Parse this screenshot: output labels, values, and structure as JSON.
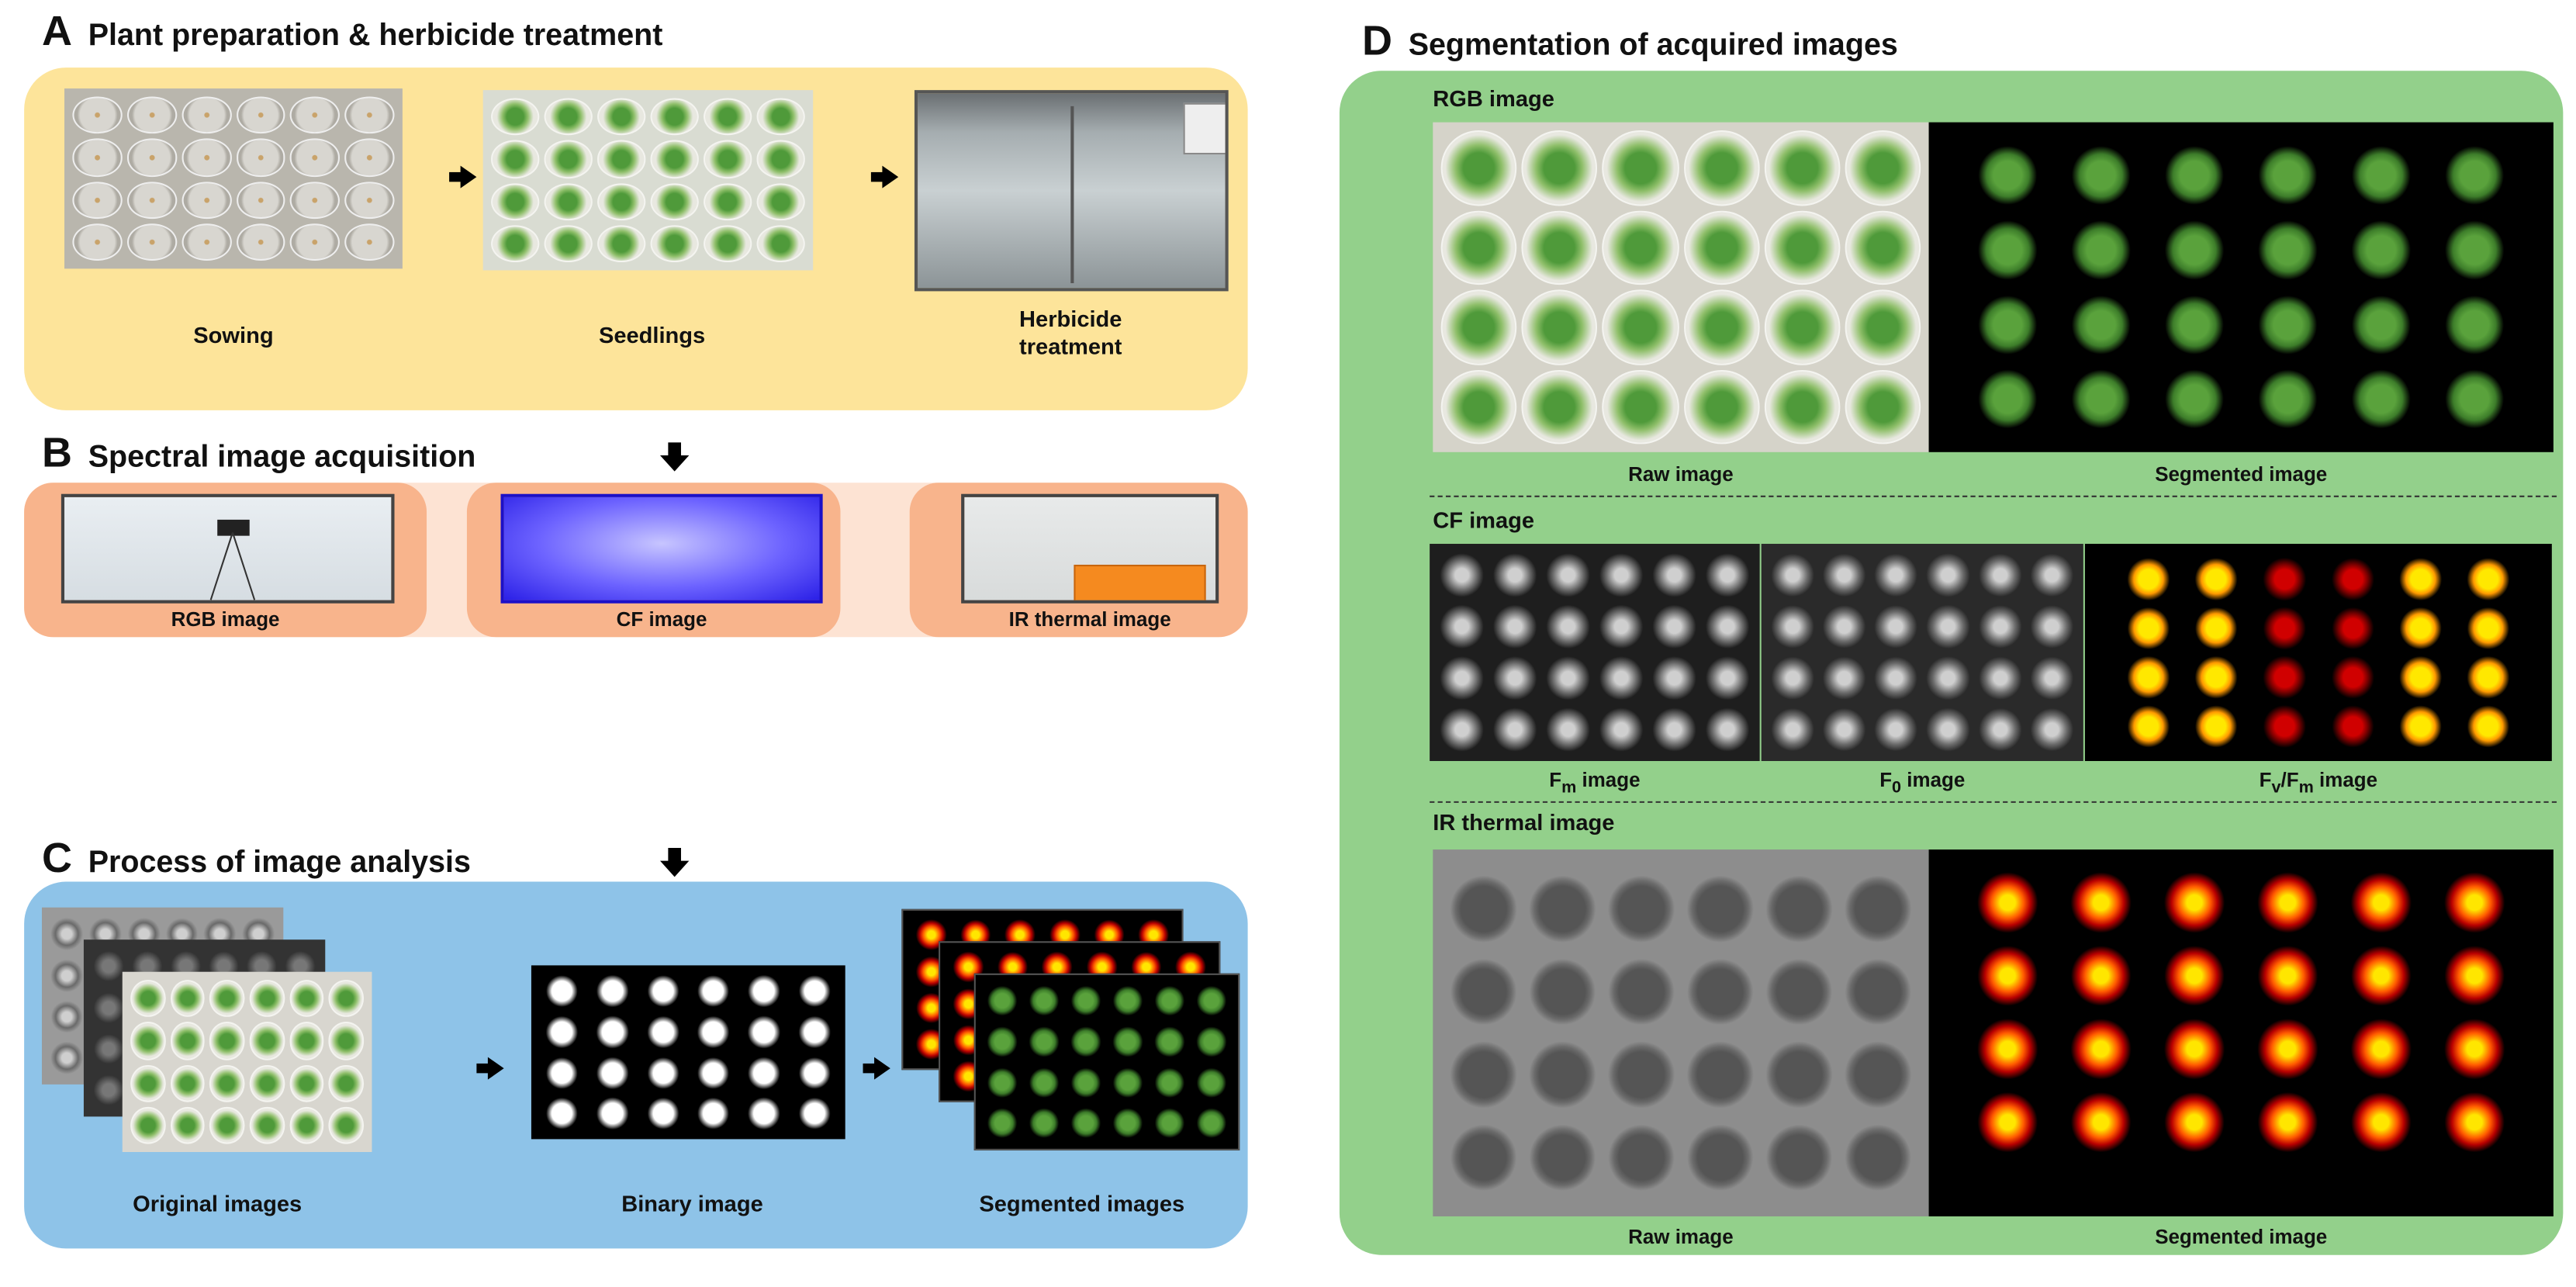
{
  "panel_a": {
    "letter": "A",
    "title": "Plant preparation & herbicide treatment",
    "steps": [
      {
        "label": "Sowing"
      },
      {
        "label": "Seedlings"
      },
      {
        "label_line1": "Herbicide",
        "label_line2": "treatment"
      }
    ],
    "color": "#fde49a"
  },
  "panel_b": {
    "letter": "B",
    "title": "Spectral image acquisition",
    "items": [
      {
        "label": "RGB image"
      },
      {
        "label": "CF image"
      },
      {
        "label": "IR thermal image"
      }
    ],
    "outer_color": "#fde3d3",
    "inner_color": "#f8b48c"
  },
  "panel_c": {
    "letter": "C",
    "title": "Process of image analysis",
    "steps": [
      {
        "label": "Original images"
      },
      {
        "label": "Binary image"
      },
      {
        "label": "Segmented images"
      }
    ],
    "color": "#8ec3e8"
  },
  "panel_d": {
    "letter": "D",
    "title": "Segmentation of acquired images",
    "color": "#93d08b",
    "rgb": {
      "heading": "RGB image",
      "raw_label": "Raw image",
      "seg_label": "Segmented image"
    },
    "cf": {
      "heading": "CF image",
      "fm": {
        "main": "F",
        "sub": "m",
        "rest": " image"
      },
      "f0": {
        "main": "F",
        "sub": "0",
        "rest": " image"
      },
      "fvfm": {
        "main1": "F",
        "sub1": "v",
        "mid": "/F",
        "sub2": "m",
        "rest": " image"
      }
    },
    "ir": {
      "heading": "IR thermal image",
      "raw_label": "Raw image",
      "seg_label": "Segmented image"
    }
  }
}
